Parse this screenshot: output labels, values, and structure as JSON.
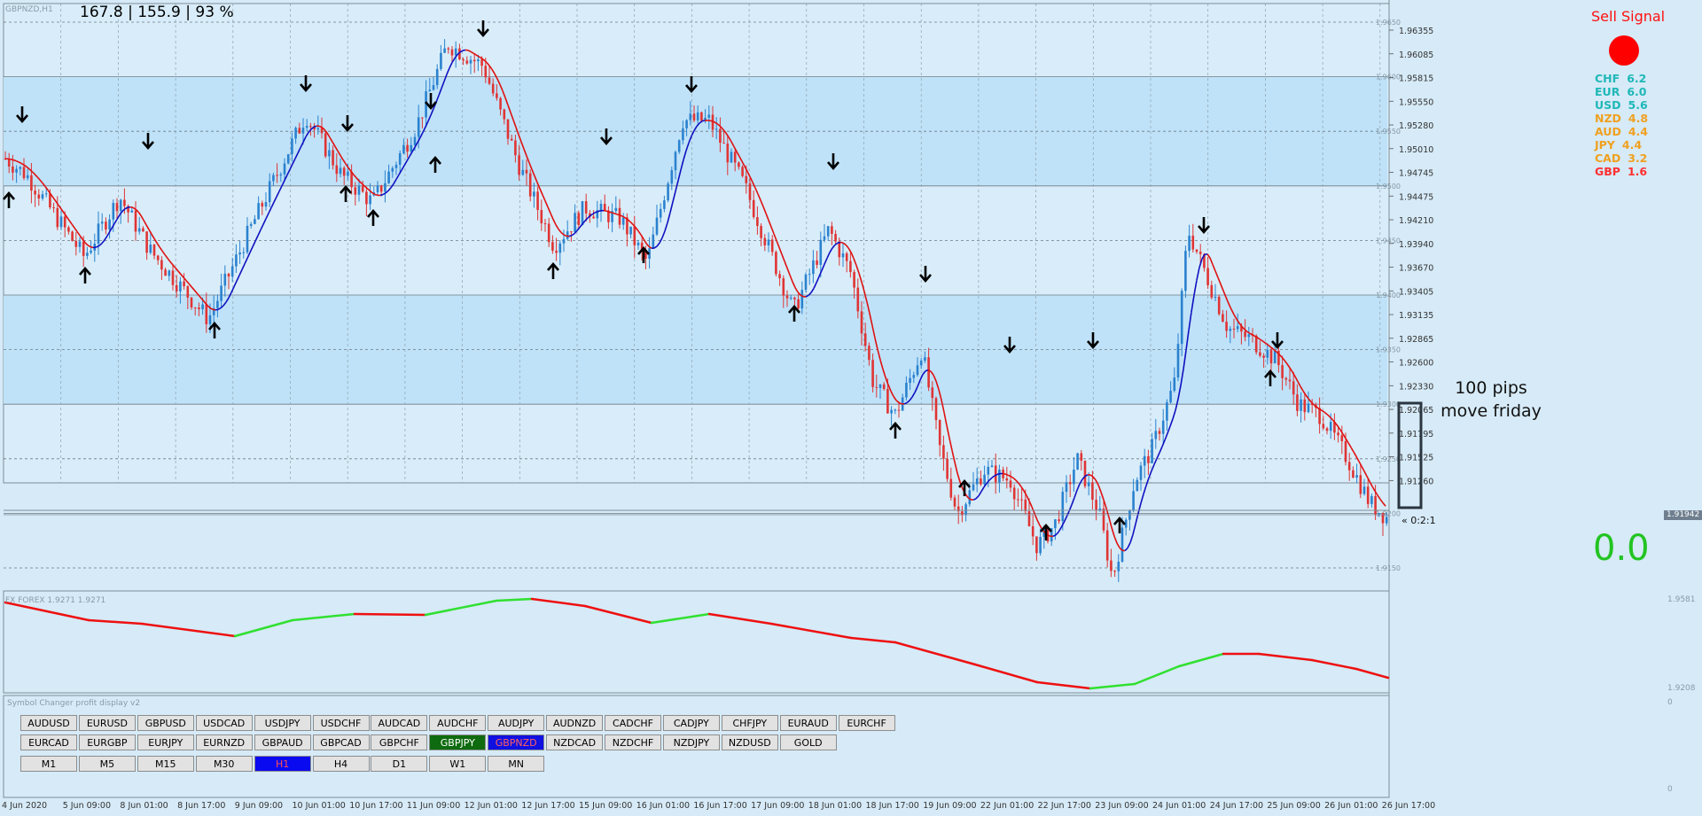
{
  "symbol_label": "GBPNZD,H1",
  "top_stats": "167.8 | 155.9 | 93 %",
  "signal": {
    "label": "Sell Signal",
    "color": "#ff0000"
  },
  "strength": [
    {
      "cur": "CHF",
      "val": "6.2",
      "color": "#1fb8b8"
    },
    {
      "cur": "EUR",
      "val": "6.0",
      "color": "#1fb8b8"
    },
    {
      "cur": "USD",
      "val": "5.6",
      "color": "#1fb8b8"
    },
    {
      "cur": "NZD",
      "val": "4.8",
      "color": "#f0a020"
    },
    {
      "cur": "AUD",
      "val": "4.4",
      "color": "#f0a020"
    },
    {
      "cur": "JPY",
      "val": "4.4",
      "color": "#f0a020"
    },
    {
      "cur": "CAD",
      "val": "3.2",
      "color": "#f0a020"
    },
    {
      "cur": "GBP",
      "val": "1.6",
      "color": "#ff3030"
    }
  ],
  "big_value": "0.0",
  "annotation": {
    "line1": "100 pips",
    "line2": "move friday"
  },
  "ratio_label": "« 0:2:1",
  "current_price": "1.91942",
  "price_axis": [
    "1.96355",
    "1.96085",
    "1.95815",
    "1.95550",
    "1.95280",
    "1.95010",
    "1.94745",
    "1.94475",
    "1.94210",
    "1.93940",
    "1.93670",
    "1.93405",
    "1.93135",
    "1.92865",
    "1.92600",
    "1.92330",
    "1.92065",
    "1.91795",
    "1.91525",
    "1.91260"
  ],
  "inner_levels": [
    "1.9650",
    "1.9600",
    "1.9550",
    "1.9500",
    "1.9450",
    "1.9400",
    "1.9350",
    "1.9300",
    "1.9250",
    "1.9200",
    "1.9150"
  ],
  "time_axis": [
    "4 Jun 2020",
    "5 Jun 09:00",
    "8 Jun 01:00",
    "8 Jun 17:00",
    "9 Jun 09:00",
    "10 Jun 01:00",
    "10 Jun 17:00",
    "11 Jun 09:00",
    "12 Jun 01:00",
    "12 Jun 17:00",
    "15 Jun 09:00",
    "16 Jun 01:00",
    "16 Jun 17:00",
    "17 Jun 09:00",
    "18 Jun 01:00",
    "18 Jun 17:00",
    "19 Jun 09:00",
    "22 Jun 01:00",
    "22 Jun 17:00",
    "23 Jun 09:00",
    "24 Jun 01:00",
    "24 Jun 17:00",
    "25 Jun 09:00",
    "26 Jun 01:00",
    "26 Jun 17:00"
  ],
  "sub_indicator": {
    "label": "FX FOREX 1.9271 1.9271",
    "axis_top": "1.9581",
    "axis_bottom": "1.9208"
  },
  "symbol_panel": {
    "label": "Symbol Changer profit display v2",
    "axis_top": "0",
    "axis_bottom": "0",
    "row1": [
      "AUDUSD",
      "EURUSD",
      "GBPUSD",
      "USDCAD",
      "USDJPY",
      "USDCHF",
      "AUDCAD",
      "AUDCHF",
      "AUDJPY",
      "AUDNZD",
      "CADCHF",
      "CADJPY",
      "CHFJPY",
      "EURAUD",
      "EURCHF"
    ],
    "row2": [
      "EURCAD",
      "EURGBP",
      "EURJPY",
      "EURNZD",
      "GBPAUD",
      "GBPCAD",
      "GBPCHF",
      "GBPJPY",
      "GBPNZD",
      "NZDCAD",
      "NZDCHF",
      "NZDJPY",
      "NZDUSD",
      "GOLD"
    ],
    "timeframes": [
      "M1",
      "M5",
      "M15",
      "M30",
      "H1",
      "H4",
      "D1",
      "W1",
      "MN"
    ],
    "active_row2_green": "GBPJPY",
    "active_row2_blue": "GBPNZD",
    "active_tf": "H1"
  },
  "colors": {
    "band_dark": "#bfe2f8",
    "band_light": "#d8edf9",
    "bull": "#2a82cf",
    "bear": "#e03434",
    "ma_down": "#e01010",
    "ma_up": "#1010c0",
    "osc_down": "#ee1010",
    "osc_up": "#30e030"
  }
}
